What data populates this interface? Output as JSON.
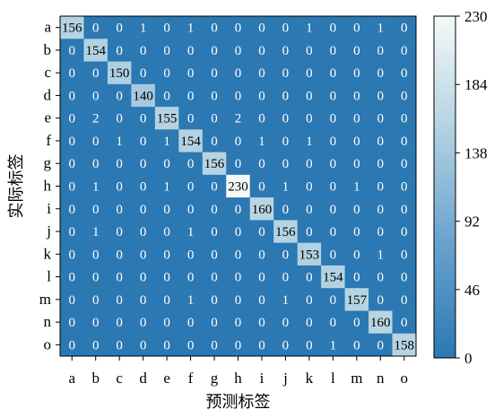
{
  "chart_data": {
    "type": "heatmap",
    "xlabel": "预测标签",
    "ylabel": "实际标签",
    "x_categories": [
      "a",
      "b",
      "c",
      "d",
      "e",
      "f",
      "g",
      "h",
      "i",
      "j",
      "k",
      "l",
      "m",
      "n",
      "o"
    ],
    "y_categories": [
      "a",
      "b",
      "c",
      "d",
      "e",
      "f",
      "g",
      "h",
      "i",
      "j",
      "k",
      "l",
      "m",
      "n",
      "o"
    ],
    "matrix": [
      [
        156,
        0,
        0,
        1,
        0,
        1,
        0,
        0,
        0,
        0,
        1,
        0,
        0,
        1,
        0
      ],
      [
        0,
        154,
        0,
        0,
        0,
        0,
        0,
        0,
        0,
        0,
        0,
        0,
        0,
        0,
        0
      ],
      [
        0,
        0,
        150,
        0,
        0,
        0,
        0,
        0,
        0,
        0,
        0,
        0,
        0,
        0,
        0
      ],
      [
        0,
        0,
        0,
        140,
        0,
        0,
        0,
        0,
        0,
        0,
        0,
        0,
        0,
        0,
        0
      ],
      [
        0,
        2,
        0,
        0,
        155,
        0,
        0,
        2,
        0,
        0,
        0,
        0,
        0,
        0,
        0
      ],
      [
        0,
        0,
        1,
        0,
        1,
        154,
        0,
        0,
        1,
        0,
        1,
        0,
        0,
        0,
        0
      ],
      [
        0,
        0,
        0,
        0,
        0,
        0,
        156,
        0,
        0,
        0,
        0,
        0,
        0,
        0,
        0
      ],
      [
        0,
        1,
        0,
        0,
        1,
        0,
        0,
        230,
        0,
        1,
        0,
        0,
        1,
        0,
        0
      ],
      [
        0,
        0,
        0,
        0,
        0,
        0,
        0,
        0,
        160,
        0,
        0,
        0,
        0,
        0,
        0
      ],
      [
        0,
        1,
        0,
        0,
        0,
        1,
        0,
        0,
        0,
        156,
        0,
        0,
        0,
        0,
        0
      ],
      [
        0,
        0,
        0,
        0,
        0,
        0,
        0,
        0,
        0,
        0,
        153,
        0,
        0,
        1,
        0
      ],
      [
        0,
        0,
        0,
        0,
        0,
        0,
        0,
        0,
        0,
        0,
        0,
        154,
        0,
        0,
        0
      ],
      [
        0,
        0,
        0,
        0,
        0,
        1,
        0,
        0,
        0,
        1,
        0,
        0,
        157,
        0,
        0
      ],
      [
        0,
        0,
        0,
        0,
        0,
        0,
        0,
        0,
        0,
        0,
        0,
        0,
        0,
        160,
        0
      ],
      [
        0,
        0,
        0,
        0,
        0,
        0,
        0,
        0,
        0,
        0,
        0,
        1,
        0,
        0,
        158
      ]
    ],
    "colorbar": {
      "min": 0,
      "max": 230,
      "ticks": [
        0,
        46,
        92,
        138,
        184,
        230
      ],
      "low_color": "#2b78b3",
      "high_color": "#f4f9f8"
    },
    "grid": false
  }
}
